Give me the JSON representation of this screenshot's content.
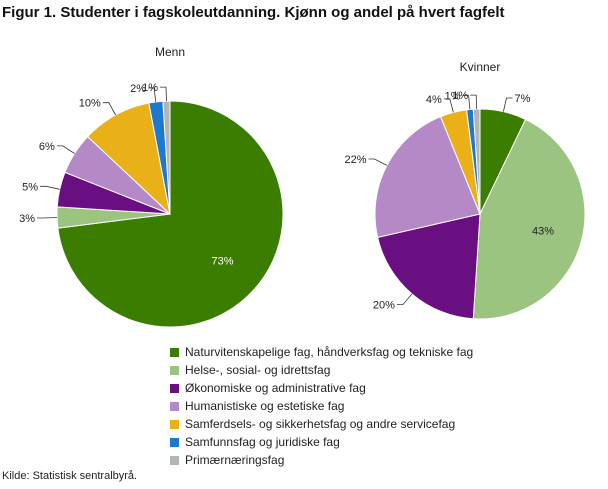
{
  "title": "Figur 1. Studenter i fagskoleutdanning. Kjønn og andel på hvert fagfelt",
  "source": "Kilde: Statistisk sentralbyrå.",
  "colors": [
    "#3a7d00",
    "#9cc481",
    "#6a0f82",
    "#b588c8",
    "#e9b117",
    "#1f78cf",
    "#b4b4b4"
  ],
  "chart_data": [
    {
      "type": "pie",
      "title": "Menn",
      "labels": [
        "Naturvitenskapelige fag, håndverksfag og tekniske fag",
        "Helse-, sosial- og idrettsfag",
        "Økonomiske og administrative fag",
        "Humanistiske og estetiske fag",
        "Samferdsels- og sikkerhetsfag og andre servicefag",
        "Samfunnsfag og juridiske fag",
        "Primærnæringsfag"
      ],
      "values": [
        73,
        3,
        5,
        6,
        10,
        2,
        1
      ],
      "value_labels": [
        "73%",
        "3%",
        "5%",
        "6%",
        "10%",
        "2%",
        "1%"
      ]
    },
    {
      "type": "pie",
      "title": "Kvinner",
      "labels": [
        "Naturvitenskapelige fag, håndverksfag og tekniske fag",
        "Helse-, sosial- og idrettsfag",
        "Økonomiske og administrative fag",
        "Humanistiske og estetiske fag",
        "Samferdsels- og sikkerhetsfag og andre servicefag",
        "Samfunnsfag og juridiske fag",
        "Primærnæringsfag"
      ],
      "values": [
        7,
        43,
        20,
        22,
        4,
        1,
        1
      ],
      "value_labels": [
        "7%",
        "43%",
        "20%",
        "22%",
        "4%",
        "1%",
        "1%"
      ]
    }
  ],
  "legend": [
    "Naturvitenskapelige fag, håndverksfag og tekniske fag",
    "Helse-, sosial- og idrettsfag",
    "Økonomiske og administrative fag",
    "Humanistiske og estetiske fag",
    "Samferdsels- og sikkerhetsfag og andre servicefag",
    "Samfunnsfag og juridiske fag",
    "Primærnæringsfag"
  ]
}
